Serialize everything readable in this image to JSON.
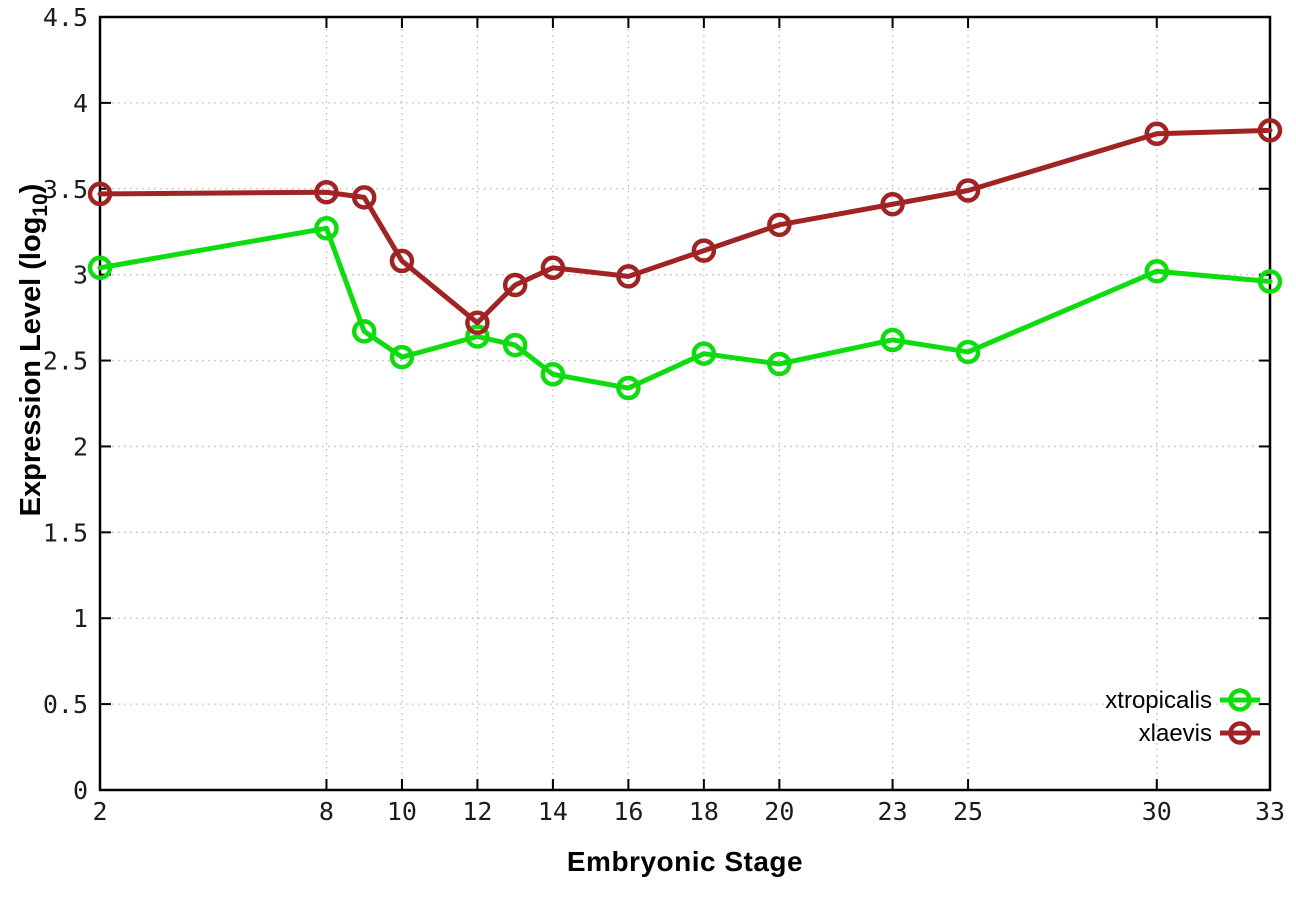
{
  "chart_data": {
    "type": "line",
    "title": "",
    "xlabel": "Embryonic Stage",
    "ylabel_main": "Expression Level (log",
    "ylabel_sub": "10",
    "ylabel_close": ")",
    "xlim": [
      2,
      33
    ],
    "ylim": [
      0,
      4.5
    ],
    "grid": true,
    "legend_position": "bottom-right-inside",
    "x_ticks": {
      "values": [
        2,
        8,
        10,
        12,
        14,
        16,
        18,
        20,
        23,
        25,
        30,
        33
      ],
      "labels": [
        "2",
        "8",
        "10",
        "12",
        "14",
        "16",
        "18",
        "20",
        "23",
        "25",
        "30",
        "33"
      ]
    },
    "y_ticks": {
      "values": [
        0,
        0.5,
        1,
        1.5,
        2,
        2.5,
        3,
        3.5,
        4,
        4.5
      ],
      "labels": [
        "0",
        "0.5",
        "1",
        "1.5",
        "2",
        "2.5",
        "3",
        "3.5",
        "4",
        "4.5"
      ]
    },
    "x": [
      2,
      8,
      9,
      10,
      12,
      13,
      14,
      16,
      18,
      20,
      23,
      25,
      30,
      33
    ],
    "series": [
      {
        "name": "xtropicalis",
        "color": "#0edc0e",
        "values": [
          3.04,
          3.27,
          2.67,
          2.52,
          2.64,
          2.59,
          2.42,
          2.34,
          2.54,
          2.48,
          2.62,
          2.55,
          3.02,
          2.96
        ]
      },
      {
        "name": "xlaevis",
        "color": "#a02424",
        "values": [
          3.47,
          3.48,
          3.45,
          3.08,
          2.72,
          2.94,
          3.04,
          2.99,
          3.14,
          3.29,
          3.41,
          3.49,
          3.82,
          3.84
        ]
      }
    ]
  },
  "style_colors": {
    "frame": "#000000",
    "grid": "#b8b8b8",
    "tick_label": "#1c1c1c"
  }
}
